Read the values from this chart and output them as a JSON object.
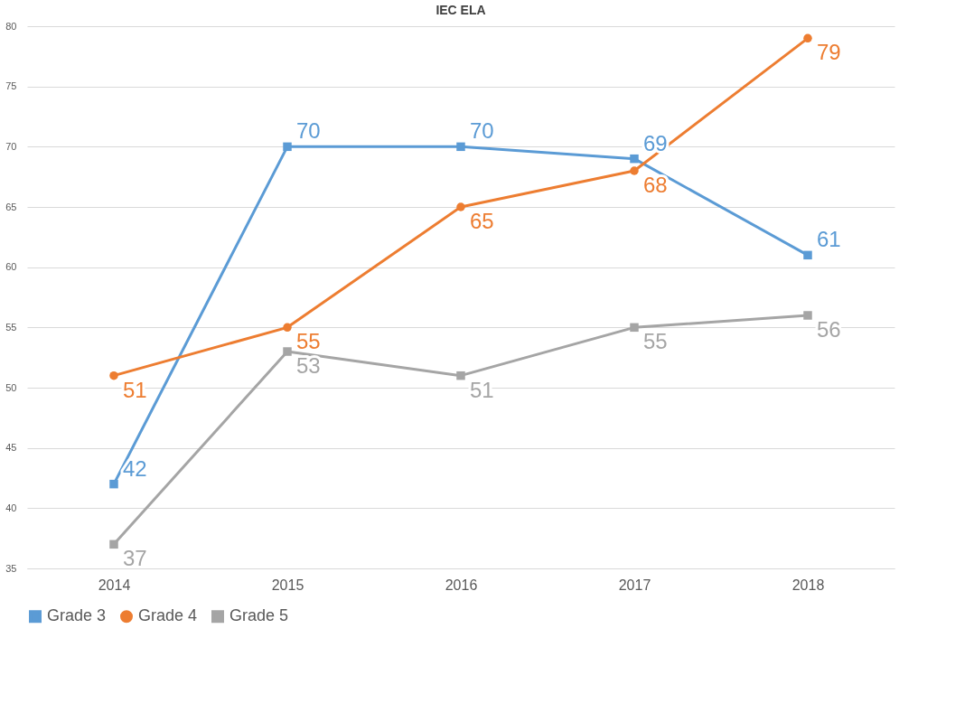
{
  "chart_data": {
    "type": "line",
    "title": "IEC ELA",
    "categories": [
      "2014",
      "2015",
      "2016",
      "2017",
      "2018"
    ],
    "series": [
      {
        "name": "Grade 3",
        "color": "#5b9bd5",
        "marker": "square",
        "values": [
          42,
          70,
          70,
          69,
          61
        ]
      },
      {
        "name": "Grade 4",
        "color": "#ed7d31",
        "marker": "circle",
        "values": [
          51,
          55,
          65,
          68,
          79
        ]
      },
      {
        "name": "Grade 5",
        "color": "#a5a5a5",
        "marker": "square",
        "values": [
          37,
          53,
          51,
          55,
          56
        ]
      }
    ],
    "ylim": [
      35,
      80
    ],
    "yticks": [
      35,
      40,
      45,
      50,
      55,
      60,
      65,
      70,
      75,
      80
    ],
    "grid": "y",
    "legend": "bottom",
    "data_labels": true,
    "line_style": "solid"
  }
}
